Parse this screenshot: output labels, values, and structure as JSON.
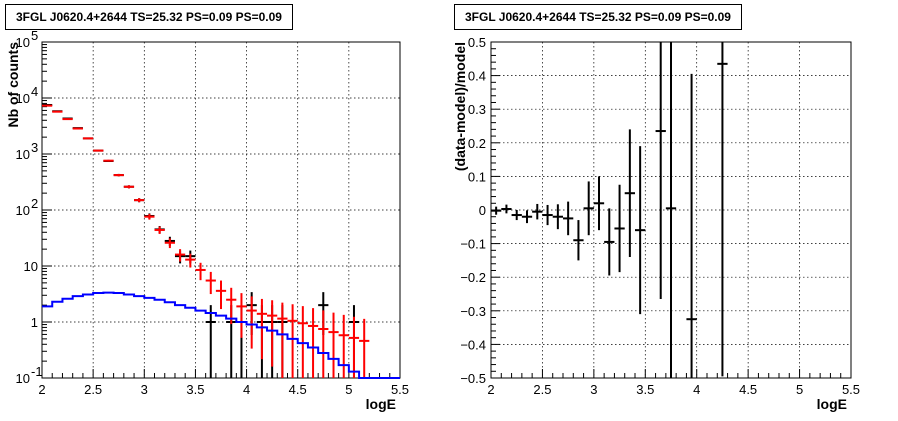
{
  "chart_data": [
    {
      "type": "histogram",
      "title": "3FGL J0620.4+2644 TS=25.32 PS=0.09 PS=0.09",
      "xlabel": "logE",
      "ylabel": "Nb of counts",
      "xlim": [
        2,
        5.5
      ],
      "ylim": [
        0.1,
        100000
      ],
      "yscale": "log",
      "grid": true,
      "x_ticks": [
        "2",
        "2.5",
        "3",
        "3.5",
        "4",
        "4.5",
        "5",
        "5.5"
      ],
      "y_ticks": [
        "10^-1",
        "1",
        "10",
        "10^2",
        "10^3",
        "10^4",
        "10^5"
      ],
      "bin_width": 0.1,
      "series": [
        {
          "color": "#000000",
          "style": "points-with-errors",
          "x": [
            2.05,
            2.15,
            2.25,
            2.35,
            2.45,
            2.55,
            2.65,
            2.75,
            2.85,
            2.95,
            3.05,
            3.15,
            3.25,
            3.35,
            3.45,
            3.55,
            3.65,
            3.75,
            3.85,
            3.95,
            4.05,
            4.15,
            4.25,
            4.35,
            4.45,
            4.55,
            4.65,
            4.75,
            4.85,
            4.95,
            5.05,
            5.15
          ],
          "y": [
            7500,
            5800,
            4300,
            2900,
            1900,
            1150,
            750,
            420,
            260,
            150,
            78,
            45,
            28,
            15,
            15,
            null,
            1,
            null,
            1,
            1,
            2,
            1,
            1,
            1,
            null,
            null,
            null,
            2,
            null,
            null,
            1,
            null
          ]
        },
        {
          "color": "#ff0000",
          "style": "points-with-errors",
          "x": [
            2.05,
            2.15,
            2.25,
            2.35,
            2.45,
            2.55,
            2.65,
            2.75,
            2.85,
            2.95,
            3.05,
            3.15,
            3.25,
            3.35,
            3.45,
            3.55,
            3.65,
            3.75,
            3.85,
            3.95,
            4.05,
            4.15,
            4.25,
            4.35,
            4.45,
            4.55,
            4.65,
            4.75,
            4.85,
            4.95,
            5.05,
            5.15
          ],
          "y": [
            7300,
            5700,
            4200,
            2850,
            1900,
            1150,
            760,
            420,
            260,
            150,
            76,
            44,
            26,
            16,
            13,
            8.5,
            5.5,
            3.6,
            2.5,
            1.9,
            1.6,
            1.4,
            1.3,
            1.15,
            1.05,
            0.95,
            0.85,
            0.75,
            0.66,
            0.58,
            0.52,
            0.46
          ]
        },
        {
          "color": "#0000ff",
          "style": "step",
          "x": [
            2.0,
            2.1,
            2.2,
            2.3,
            2.4,
            2.5,
            2.6,
            2.7,
            2.8,
            2.9,
            3.0,
            3.1,
            3.2,
            3.3,
            3.4,
            3.5,
            3.6,
            3.7,
            3.8,
            3.9,
            4.0,
            4.1,
            4.2,
            4.3,
            4.4,
            4.5,
            4.6,
            4.7,
            4.8,
            4.9,
            5.0,
            5.1,
            5.2,
            5.3,
            5.4
          ],
          "y": [
            1.9,
            2.3,
            2.6,
            2.9,
            3.1,
            3.3,
            3.35,
            3.3,
            3.1,
            2.9,
            2.7,
            2.5,
            2.25,
            2.0,
            1.8,
            1.6,
            1.45,
            1.3,
            1.15,
            1.0,
            0.9,
            0.8,
            0.7,
            0.6,
            0.5,
            0.42,
            0.35,
            0.28,
            0.22,
            0.17,
            0.13,
            0.1,
            0.1,
            0.1,
            0.1
          ]
        }
      ]
    },
    {
      "type": "scatter",
      "title": "3FGL J0620.4+2644 TS=25.32 PS=0.09 PS=0.09",
      "xlabel": "logE",
      "ylabel": "(data-model)/model",
      "xlim": [
        2,
        5.5
      ],
      "ylim": [
        -0.5,
        0.5
      ],
      "grid": true,
      "x_ticks": [
        "2",
        "2.5",
        "3",
        "3.5",
        "4",
        "4.5",
        "5",
        "5.5"
      ],
      "y_ticks": [
        "-0.5",
        "-0.4",
        "-0.3",
        "-0.2",
        "-0.1",
        "0",
        "0.1",
        "0.2",
        "0.3",
        "0.4",
        "0.5"
      ],
      "bin_width": 0.1,
      "series": [
        {
          "color": "#000000",
          "style": "points-with-errors",
          "x": [
            2.05,
            2.15,
            2.25,
            2.35,
            2.45,
            2.55,
            2.65,
            2.75,
            2.85,
            2.95,
            3.05,
            3.15,
            3.25,
            3.35,
            3.45,
            3.65,
            3.75,
            3.95,
            4.25
          ],
          "y": [
            -0.002,
            0.003,
            -0.015,
            -0.02,
            -0.005,
            -0.015,
            -0.02,
            -0.025,
            -0.09,
            0.005,
            0.02,
            -0.095,
            -0.055,
            0.05,
            -0.06,
            0.235,
            0.005,
            -0.325,
            0.435
          ],
          "yerr": [
            0.012,
            0.013,
            0.015,
            0.019,
            0.023,
            0.03,
            0.037,
            0.05,
            0.06,
            0.08,
            0.08,
            0.1,
            0.13,
            0.19,
            0.25,
            0.5,
            0.6,
            0.73,
            0.93
          ]
        }
      ]
    }
  ]
}
